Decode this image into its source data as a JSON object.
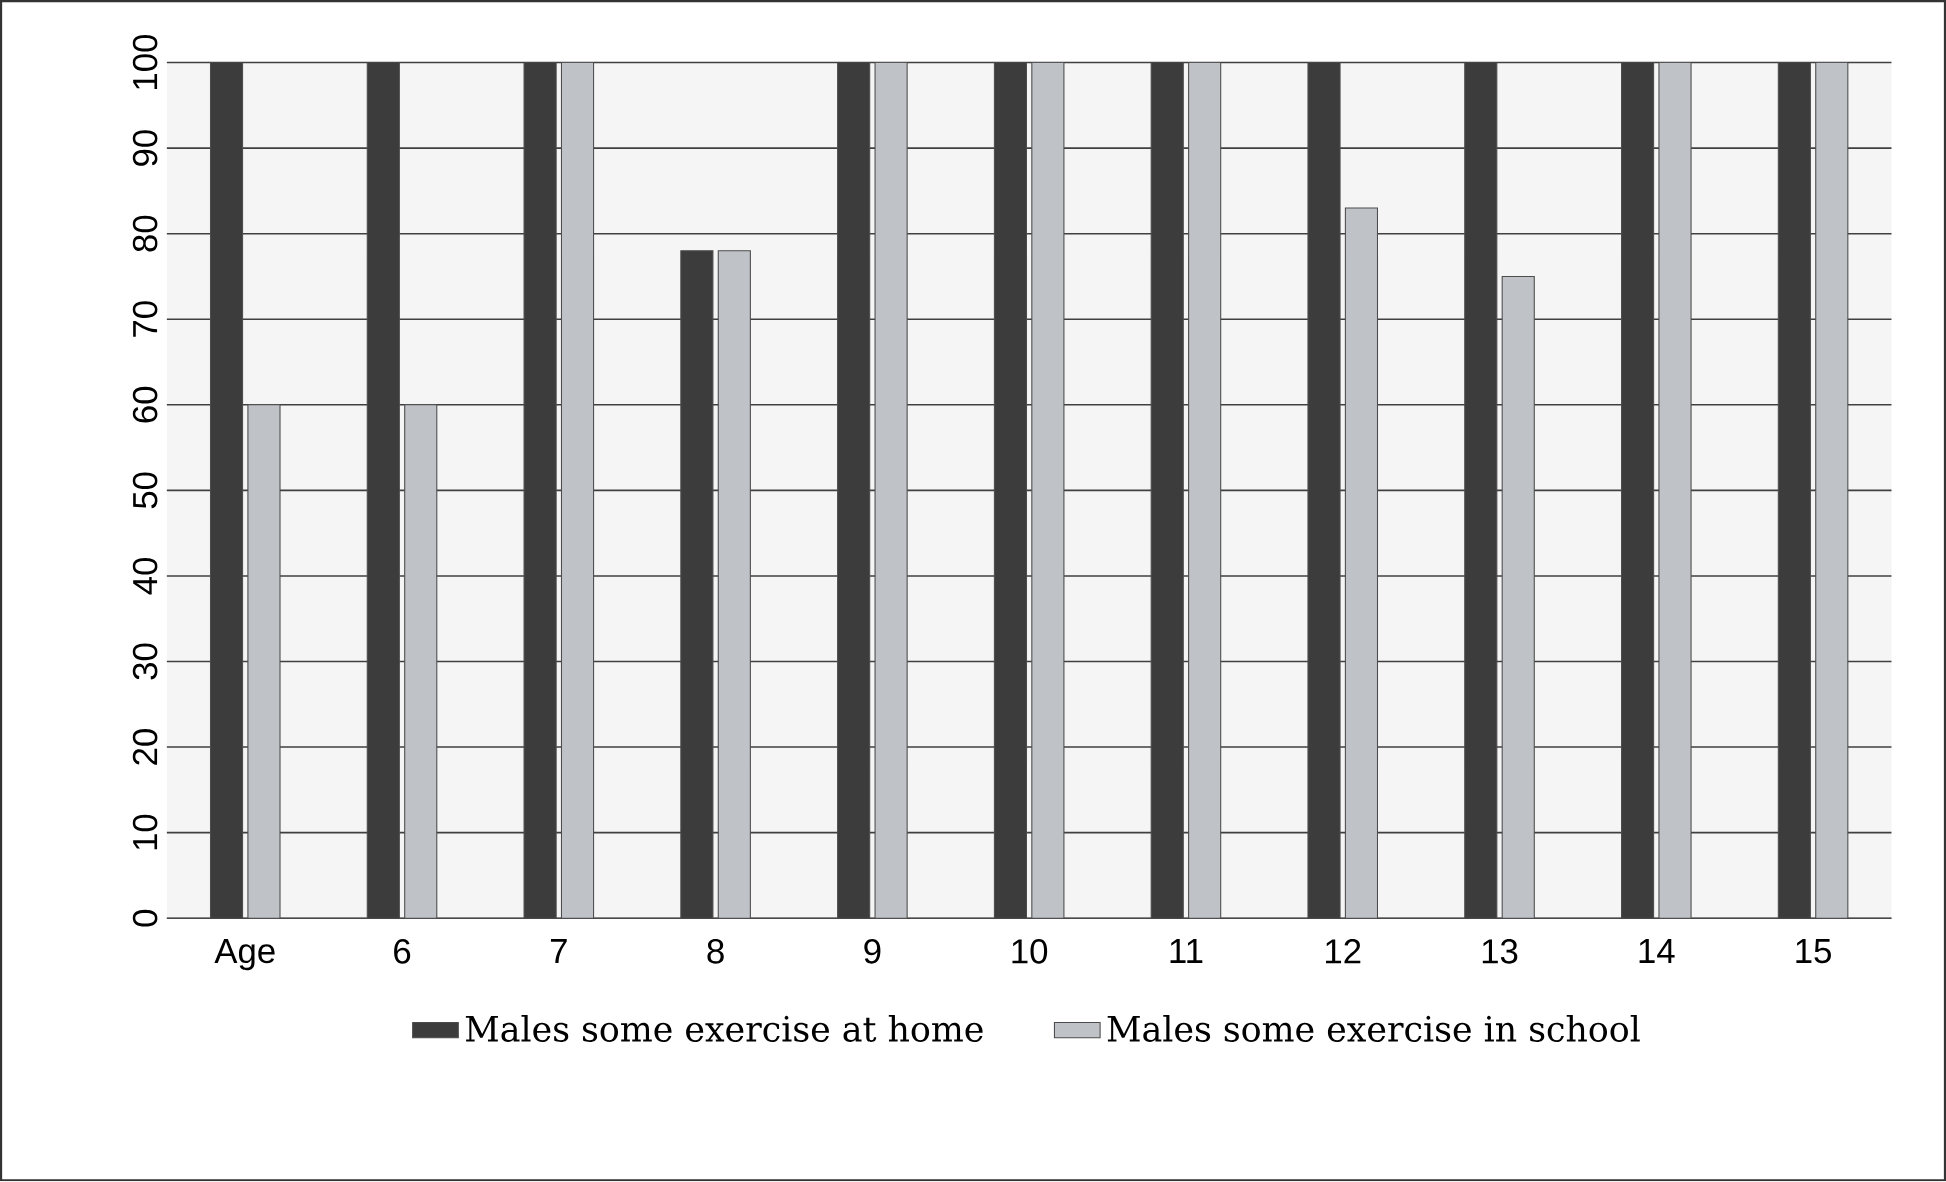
{
  "chart_data": {
    "type": "bar",
    "categories": [
      "Age",
      "6",
      "7",
      "8",
      "9",
      "10",
      "11",
      "12",
      "13",
      "14",
      "15"
    ],
    "series": [
      {
        "name": "Males some exercise at home",
        "color": "#3c3c3c",
        "values": [
          100,
          100,
          100,
          78,
          100,
          100,
          100,
          100,
          100,
          100,
          100
        ]
      },
      {
        "name": "Males some exercise in school",
        "color": "#bfc3c8",
        "values": [
          60,
          60,
          100,
          78,
          100,
          100,
          100,
          83,
          75,
          100,
          100
        ]
      }
    ],
    "ylim": [
      0,
      100
    ],
    "yticks": [
      0,
      10,
      20,
      30,
      40,
      50,
      60,
      70,
      80,
      90,
      100
    ],
    "grid": "y",
    "legend": "bottom"
  }
}
